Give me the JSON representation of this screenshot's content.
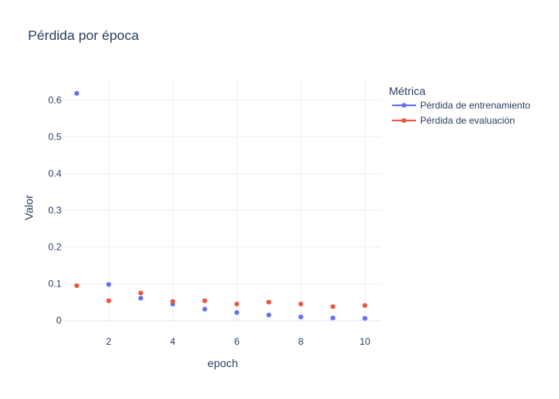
{
  "chart_data": {
    "type": "scatter",
    "title": "Pérdida por época",
    "xlabel": "epoch",
    "ylabel": "Valor",
    "xlim": [
      0.6,
      10.5
    ],
    "ylim": [
      -0.005,
      0.655
    ],
    "xticks": [
      2,
      4,
      6,
      8,
      10
    ],
    "yticks": [
      0,
      0.1,
      0.2,
      0.3,
      0.4,
      0.5,
      0.6
    ],
    "grid": true,
    "legend": {
      "title": "Métrica",
      "placement": "right"
    },
    "x": [
      1,
      2,
      3,
      4,
      5,
      6,
      7,
      8,
      9,
      10
    ],
    "series": [
      {
        "name": "Pérdida de entrenamiento",
        "color": "#636efa",
        "values": [
          0.618,
          0.098,
          0.061,
          0.045,
          0.031,
          0.022,
          0.015,
          0.01,
          0.007,
          0.006
        ]
      },
      {
        "name": "Pérdida de evaluación",
        "color": "#ef553b",
        "values": [
          0.095,
          0.054,
          0.075,
          0.052,
          0.054,
          0.045,
          0.05,
          0.045,
          0.038,
          0.041
        ]
      }
    ]
  }
}
